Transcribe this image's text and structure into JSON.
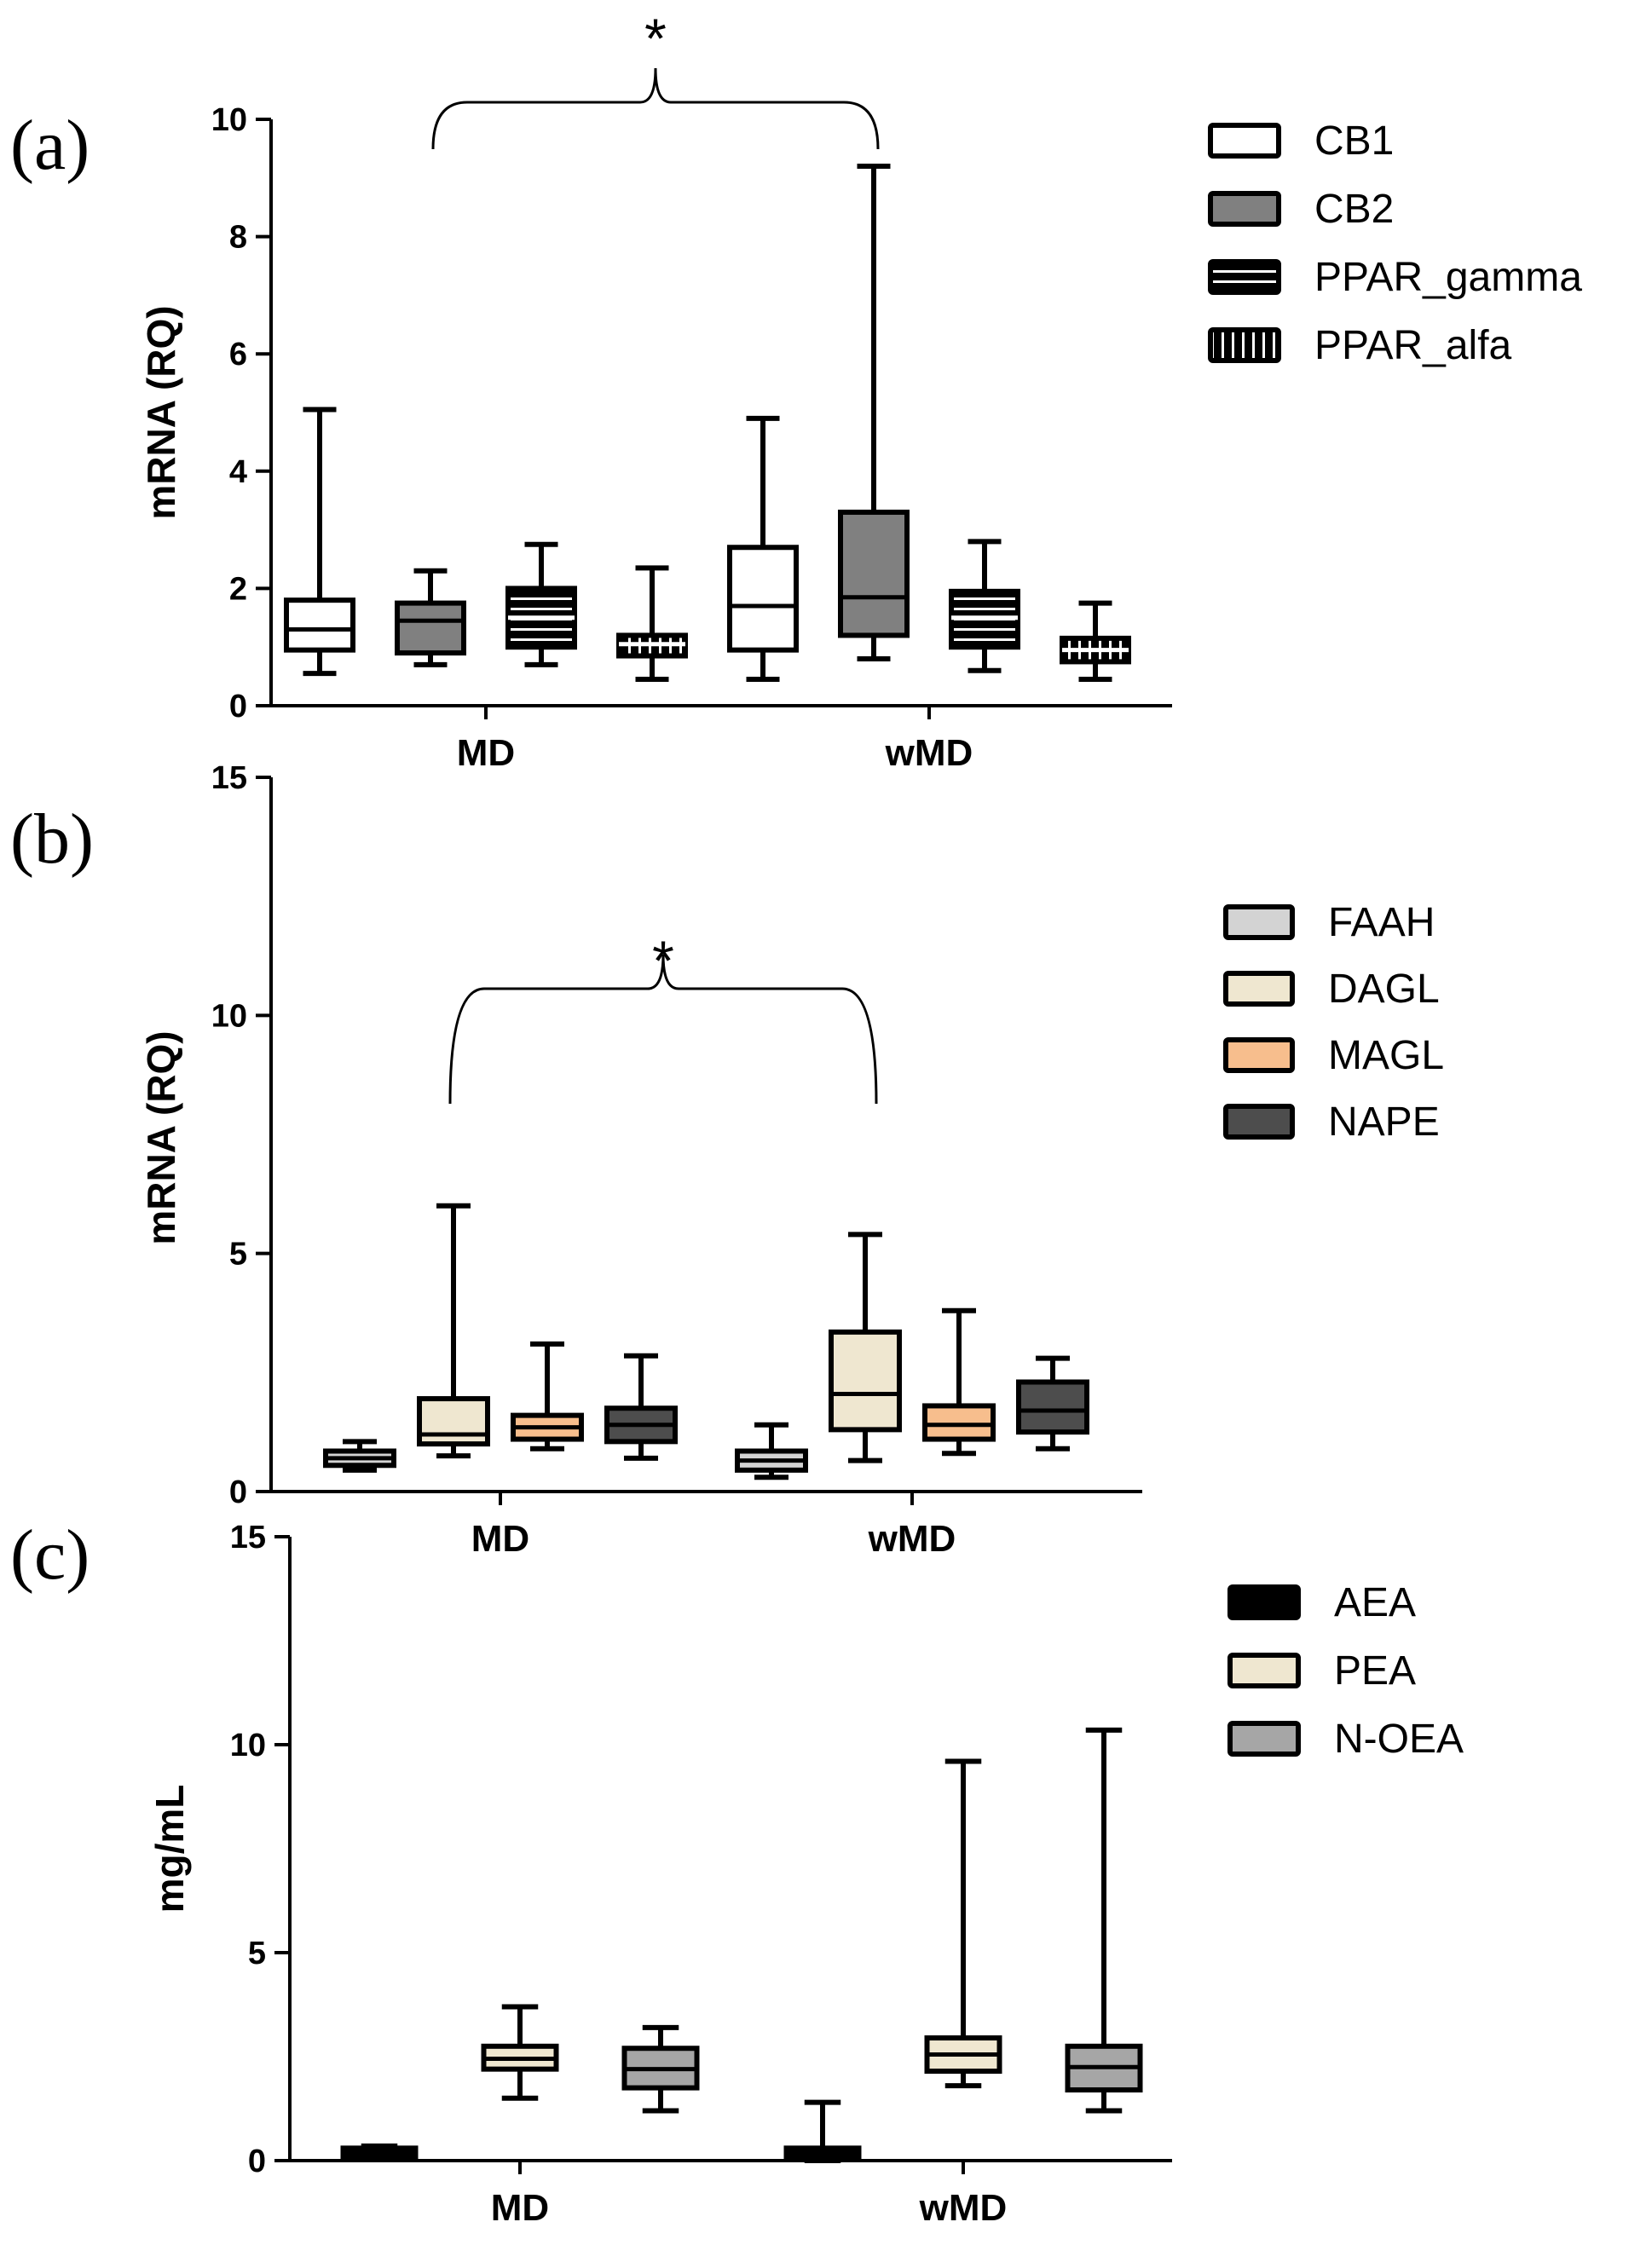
{
  "chart_data": [
    {
      "panel": "(a)",
      "type": "box",
      "ylabel": "mRNA (RQ)",
      "ylim": [
        0,
        10
      ],
      "yticks": [
        0,
        2,
        4,
        6,
        8,
        10
      ],
      "categories": [
        "MD",
        "wMD"
      ],
      "significance": "*",
      "series": [
        {
          "name": "CB1",
          "fill": "#ffffff",
          "pattern": "none",
          "boxes": [
            {
              "min": 0.55,
              "q1": 0.95,
              "median": 1.3,
              "q3": 1.8,
              "max": 5.05
            },
            {
              "min": 0.45,
              "q1": 0.95,
              "median": 1.7,
              "q3": 2.7,
              "max": 4.9
            }
          ]
        },
        {
          "name": "CB2",
          "fill": "#808080",
          "pattern": "none",
          "boxes": [
            {
              "min": 0.7,
              "q1": 0.9,
              "median": 1.45,
              "q3": 1.75,
              "max": 2.3
            },
            {
              "min": 0.8,
              "q1": 1.2,
              "median": 1.85,
              "q3": 3.3,
              "max": 9.2
            }
          ]
        },
        {
          "name": "PPAR_gamma",
          "fill": "#000000",
          "pattern": "hlines",
          "boxes": [
            {
              "min": 0.7,
              "q1": 1.0,
              "median": 1.5,
              "q3": 2.0,
              "max": 2.75
            },
            {
              "min": 0.6,
              "q1": 1.0,
              "median": 1.5,
              "q3": 1.95,
              "max": 2.8
            }
          ]
        },
        {
          "name": "PPAR_alfa",
          "fill": "#000000",
          "pattern": "vlines",
          "boxes": [
            {
              "min": 0.45,
              "q1": 0.85,
              "median": 1.05,
              "q3": 1.2,
              "max": 2.35
            },
            {
              "min": 0.45,
              "q1": 0.75,
              "median": 0.95,
              "q3": 1.15,
              "max": 1.75
            }
          ]
        }
      ]
    },
    {
      "panel": "(b)",
      "type": "box",
      "ylabel": "mRNA (RQ)",
      "ylim": [
        0,
        15
      ],
      "yticks": [
        0,
        5,
        10,
        15
      ],
      "categories": [
        "MD",
        "wMD"
      ],
      "significance": "*",
      "series": [
        {
          "name": "FAAH",
          "fill": "#d3d3d3",
          "pattern": "none",
          "boxes": [
            {
              "min": 0.45,
              "q1": 0.55,
              "median": 0.7,
              "q3": 0.85,
              "max": 1.05
            },
            {
              "min": 0.3,
              "q1": 0.45,
              "median": 0.65,
              "q3": 0.85,
              "max": 1.4
            }
          ]
        },
        {
          "name": "DAGL",
          "fill": "#efe7d0",
          "pattern": "none",
          "boxes": [
            {
              "min": 0.75,
              "q1": 1.0,
              "median": 1.2,
              "q3": 1.95,
              "max": 6.0
            },
            {
              "min": 0.65,
              "q1": 1.3,
              "median": 2.05,
              "q3": 3.35,
              "max": 5.4
            }
          ]
        },
        {
          "name": "MAGL",
          "fill": "#f7be8d",
          "pattern": "none",
          "boxes": [
            {
              "min": 0.9,
              "q1": 1.1,
              "median": 1.35,
              "q3": 1.6,
              "max": 3.1
            },
            {
              "min": 0.8,
              "q1": 1.1,
              "median": 1.4,
              "q3": 1.8,
              "max": 3.8
            }
          ]
        },
        {
          "name": "NAPE",
          "fill": "#4d4d4d",
          "pattern": "none",
          "boxes": [
            {
              "min": 0.7,
              "q1": 1.05,
              "median": 1.4,
              "q3": 1.75,
              "max": 2.85
            },
            {
              "min": 0.9,
              "q1": 1.25,
              "median": 1.7,
              "q3": 2.3,
              "max": 2.8
            }
          ]
        }
      ]
    },
    {
      "panel": "(c)",
      "type": "box",
      "ylabel": "mg/mL",
      "ylim": [
        0,
        15
      ],
      "yticks": [
        0,
        5,
        10,
        15
      ],
      "categories": [
        "MD",
        "wMD"
      ],
      "significance": "",
      "series": [
        {
          "name": "AEA",
          "fill": "#000000",
          "pattern": "none",
          "boxes": [
            {
              "min": 0.1,
              "q1": 0.1,
              "median": 0.2,
              "q3": 0.3,
              "max": 0.35
            },
            {
              "min": 0.0,
              "q1": 0.05,
              "median": 0.15,
              "q3": 0.3,
              "max": 1.4
            }
          ]
        },
        {
          "name": "PEA",
          "fill": "#efe7d0",
          "pattern": "none",
          "boxes": [
            {
              "min": 1.5,
              "q1": 2.2,
              "median": 2.45,
              "q3": 2.75,
              "max": 3.7
            },
            {
              "min": 1.8,
              "q1": 2.15,
              "median": 2.55,
              "q3": 2.95,
              "max": 9.6
            }
          ]
        },
        {
          "name": "N-OEA",
          "fill": "#a6a6a6",
          "pattern": "none",
          "boxes": [
            {
              "min": 1.2,
              "q1": 1.75,
              "median": 2.2,
              "q3": 2.7,
              "max": 3.2
            },
            {
              "min": 1.2,
              "q1": 1.7,
              "median": 2.25,
              "q3": 2.75,
              "max": 10.35
            }
          ]
        }
      ]
    }
  ]
}
